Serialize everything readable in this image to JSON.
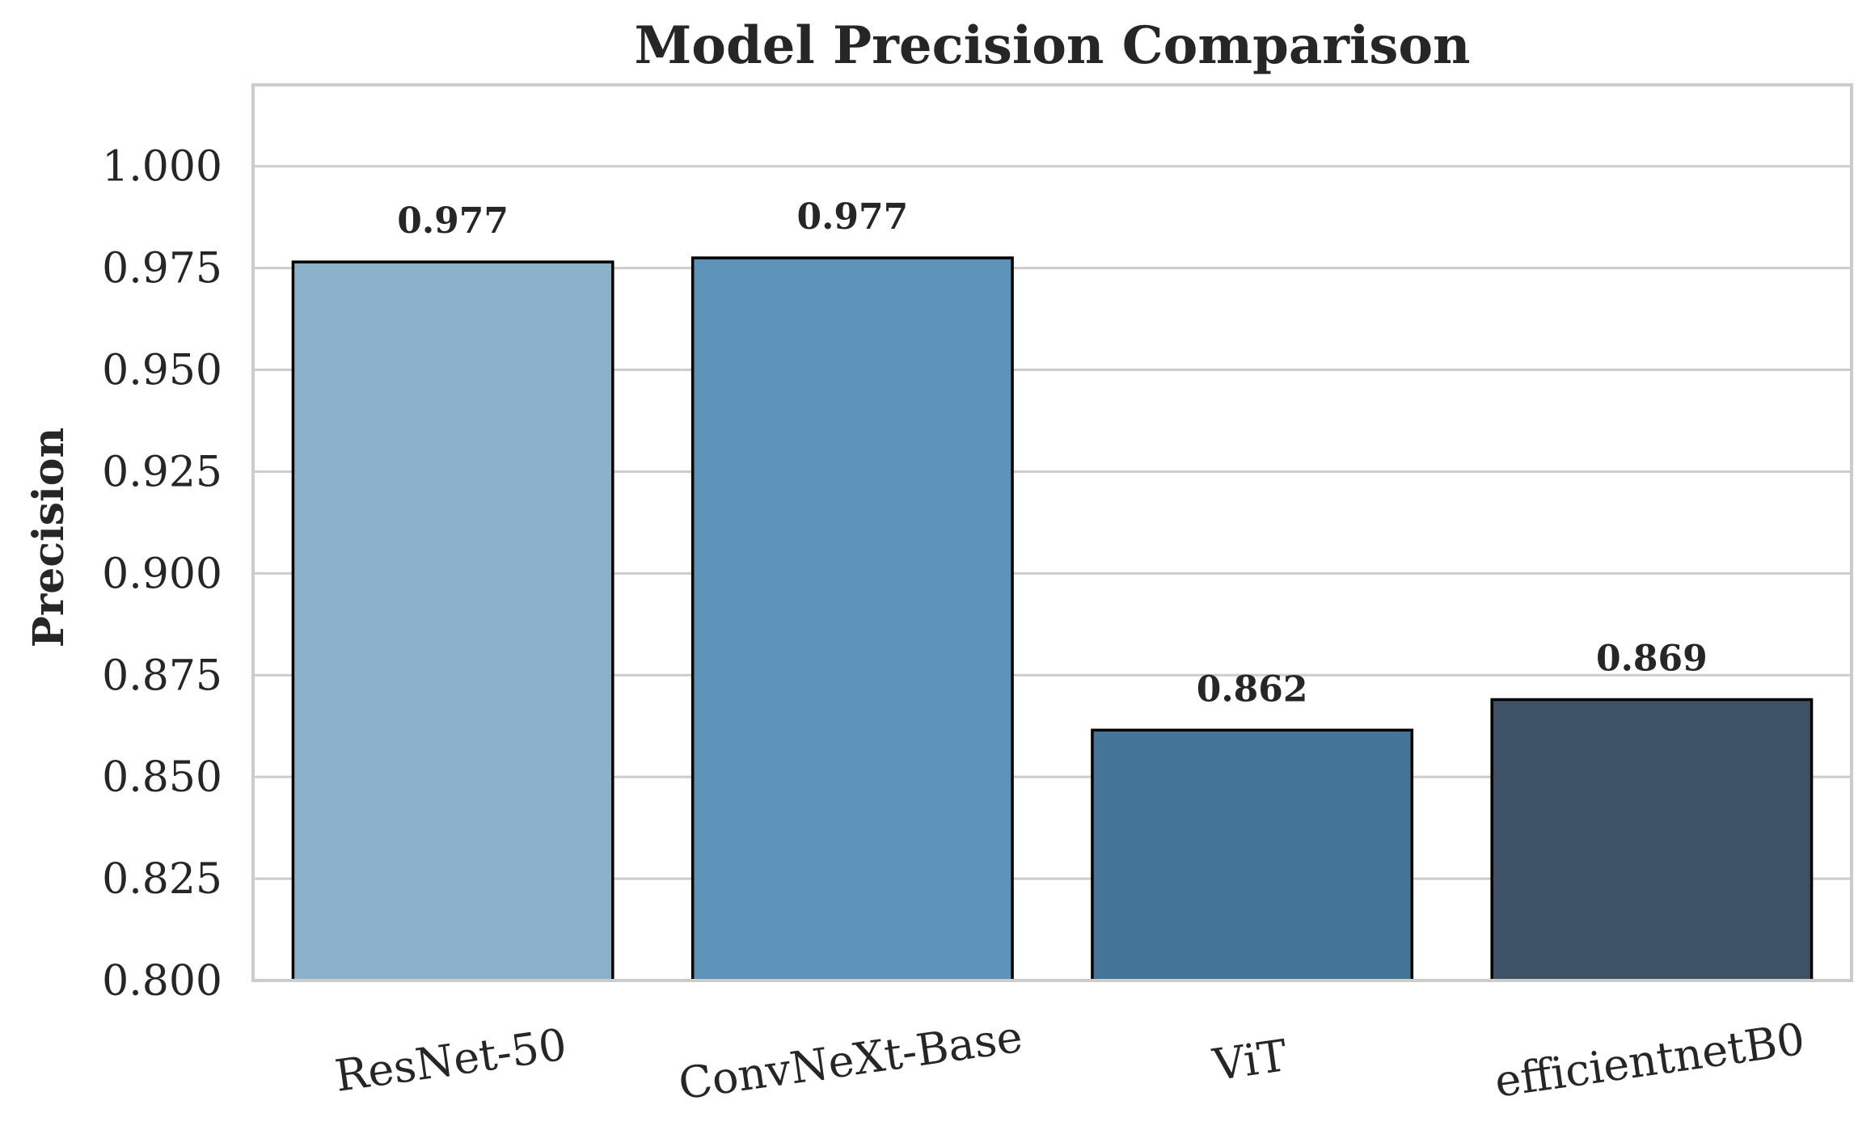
{
  "chart_data": {
    "type": "bar",
    "title": "Model Precision Comparison",
    "xlabel": "",
    "ylabel": "Precision",
    "categories": [
      "ResNet-50",
      "ConvNeXt-Base",
      "ViT",
      "efficientnetB0"
    ],
    "values": [
      0.9765,
      0.9775,
      0.8615,
      0.869
    ],
    "value_labels": [
      "0.977",
      "0.977",
      "0.862",
      "0.869"
    ],
    "colors": [
      "#8AB0CA",
      "#5E93B9",
      "#457596",
      "#3E5266"
    ],
    "ylim": [
      0.8,
      1.02
    ],
    "yticks": [
      0.8,
      0.825,
      0.85,
      0.875,
      0.9,
      0.925,
      0.95,
      0.975,
      1.0
    ],
    "ytick_labels": [
      "0.800",
      "0.825",
      "0.850",
      "0.875",
      "0.900",
      "0.925",
      "0.950",
      "0.975",
      "1.000"
    ],
    "grid": "horizontal",
    "legend": "none"
  }
}
